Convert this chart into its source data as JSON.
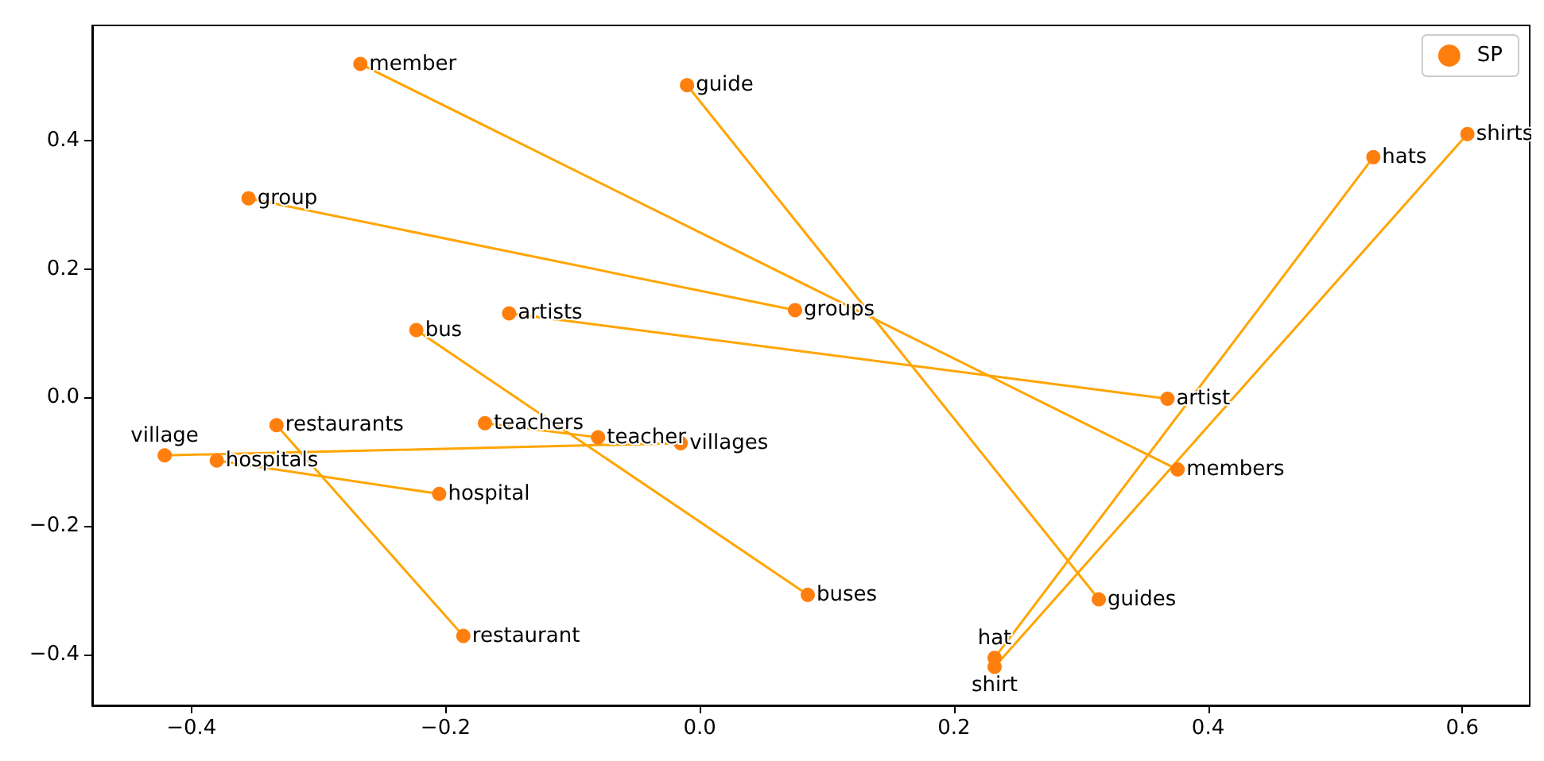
{
  "chart_data": {
    "type": "scatter",
    "legend": "top right",
    "grid": false,
    "xlim": [
      -0.478,
      0.653
    ],
    "ylim": [
      -0.479,
      0.579
    ],
    "xticks": [
      {
        "value": -0.4,
        "label": "−0.4"
      },
      {
        "value": -0.2,
        "label": "−0.2"
      },
      {
        "value": 0,
        "label": "0.0"
      },
      0.2,
      0.4,
      0.6
    ],
    "yticks": [
      {
        "value": -0.4,
        "label": "−0.4"
      },
      {
        "value": -0.2,
        "label": "−0.2"
      },
      {
        "value": 0,
        "label": "0.0"
      },
      0.2,
      0.4
    ],
    "series": [
      {
        "type": "line",
        "color": "#ffa500",
        "line_style": "solid",
        "x": [
          -0.267,
          0.376
        ],
        "values": [
          0.519,
          -0.112
        ]
      },
      {
        "type": "line",
        "color": "#ffa500",
        "line_style": "solid",
        "x": [
          -0.01,
          0.314
        ],
        "values": [
          0.486,
          -0.314
        ]
      },
      {
        "type": "line",
        "color": "#ffa500",
        "line_style": "solid",
        "x": [
          -0.355,
          0.075
        ],
        "values": [
          0.31,
          0.136
        ]
      },
      {
        "type": "line",
        "color": "#ffa500",
        "line_style": "solid",
        "x": [
          -0.223,
          0.085
        ],
        "values": [
          0.105,
          -0.307
        ]
      },
      {
        "type": "line",
        "color": "#ffa500",
        "line_style": "solid",
        "x": [
          -0.15,
          0.368
        ],
        "values": [
          0.131,
          -0.002
        ]
      },
      {
        "type": "line",
        "color": "#ffa500",
        "line_style": "solid",
        "x": [
          -0.169,
          -0.08
        ],
        "values": [
          -0.04,
          -0.062
        ]
      },
      {
        "type": "line",
        "color": "#ffa500",
        "line_style": "solid",
        "x": [
          -0.421,
          -0.015
        ],
        "values": [
          -0.09,
          -0.071
        ]
      },
      {
        "type": "line",
        "color": "#ffa500",
        "line_style": "solid",
        "x": [
          -0.38,
          -0.205
        ],
        "values": [
          -0.098,
          -0.15
        ]
      },
      {
        "type": "line",
        "color": "#ffa500",
        "line_style": "solid",
        "x": [
          -0.333,
          -0.186
        ],
        "values": [
          -0.043,
          -0.371
        ]
      },
      {
        "type": "line",
        "color": "#ffa500",
        "line_style": "solid",
        "x": [
          0.232,
          0.53
        ],
        "values": [
          -0.405,
          0.374
        ]
      },
      {
        "type": "line",
        "color": "#ffa500",
        "line_style": "solid",
        "x": [
          0.232,
          0.604
        ],
        "values": [
          -0.419,
          0.41
        ]
      },
      {
        "type": "scatter",
        "name": "SP",
        "color": "#ff7f0e",
        "marker": "circle",
        "x": [
          -0.267,
          -0.01,
          -0.355,
          -0.223,
          -0.15,
          0.075,
          -0.333,
          -0.169,
          -0.08,
          -0.015,
          -0.421,
          -0.38,
          -0.205,
          -0.186,
          0.085,
          0.232,
          0.232,
          0.314,
          0.368,
          0.376,
          0.53,
          0.604
        ],
        "values": [
          0.519,
          0.486,
          0.31,
          0.105,
          0.131,
          0.136,
          -0.043,
          -0.04,
          -0.062,
          -0.071,
          -0.09,
          -0.098,
          -0.15,
          -0.371,
          -0.307,
          -0.405,
          -0.419,
          -0.314,
          -0.002,
          -0.112,
          0.374,
          0.41
        ],
        "value_labels": [
          "member",
          "guide",
          "group",
          "bus",
          "artists",
          "groups",
          "restaurants",
          "teachers",
          "teacher",
          "villages",
          "village",
          "hospitals",
          "hospital",
          "restaurant",
          "buses",
          "hat",
          "shirt",
          "guides",
          "artist",
          "members",
          "hats",
          "shirts"
        ]
      }
    ]
  }
}
